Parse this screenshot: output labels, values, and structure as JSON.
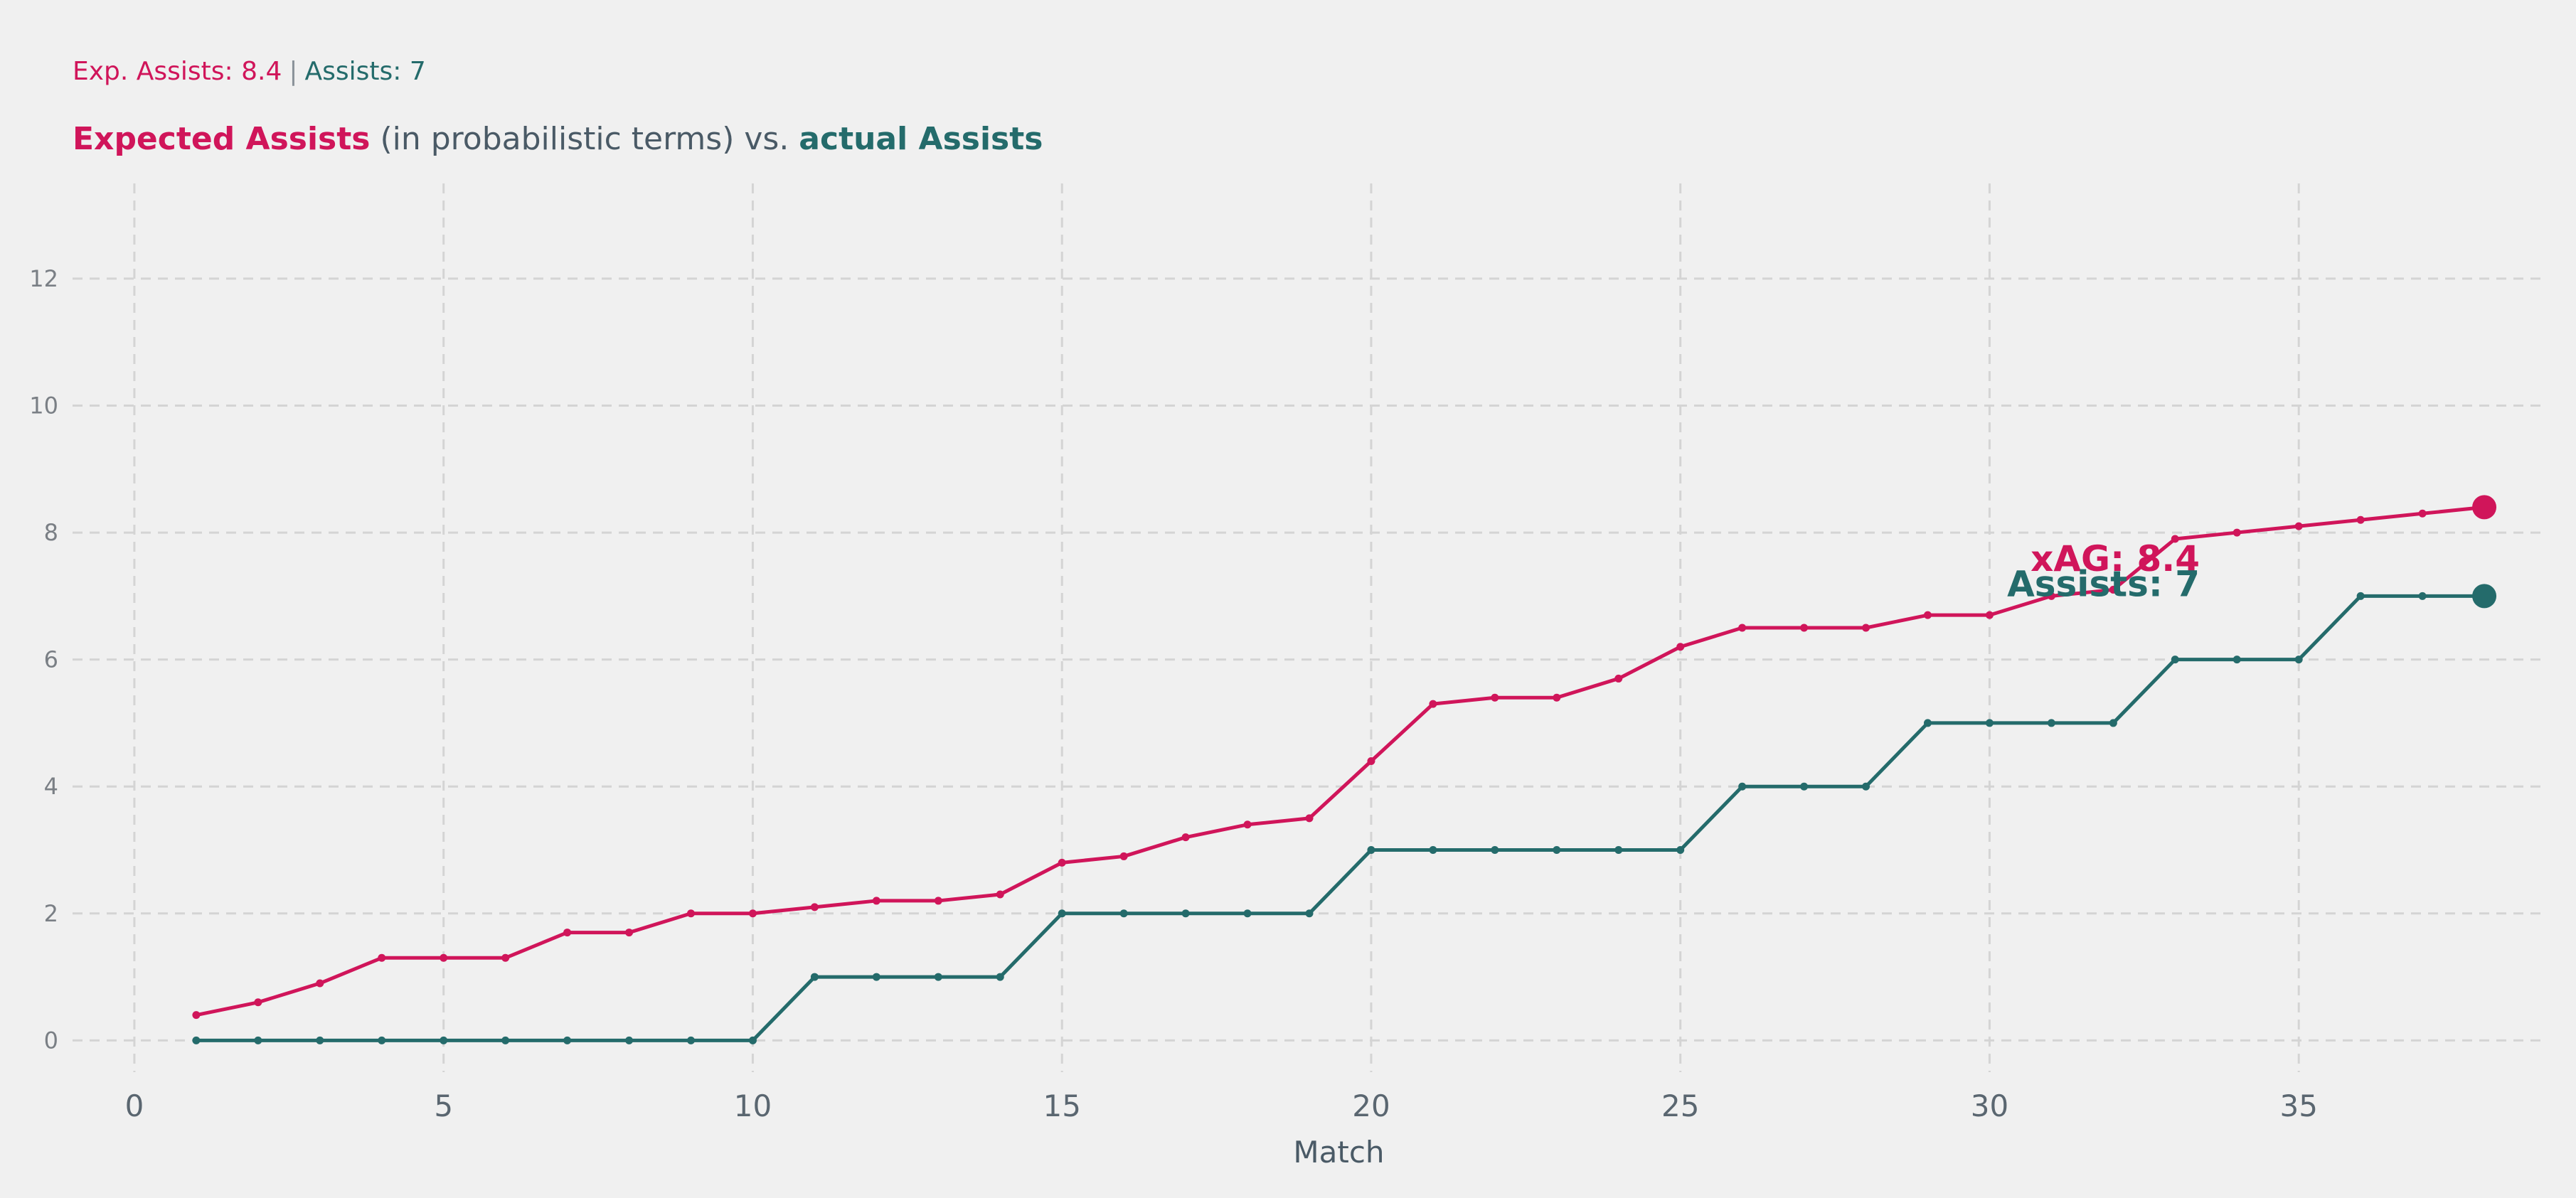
{
  "header": {
    "xa_stat": "Exp. Assists: 8.4",
    "separator": "|",
    "ac_stat": "Assists: 7",
    "title_xa": "Expected Assists",
    "title_mid": " (in probabilistic terms) vs. ",
    "title_ac": "actual Assists"
  },
  "chart_data": {
    "type": "line",
    "xlabel": "Match",
    "ylabel": "",
    "xlim": [
      -1,
      39
    ],
    "ylim": [
      -0.5,
      13.5
    ],
    "xticks": [
      0,
      5,
      10,
      15,
      20,
      25,
      30,
      35
    ],
    "yticks": [
      0,
      2,
      4,
      6,
      8,
      10,
      12
    ],
    "grid": true,
    "x": [
      1,
      2,
      3,
      4,
      5,
      6,
      7,
      8,
      9,
      10,
      11,
      12,
      13,
      14,
      15,
      16,
      17,
      18,
      19,
      20,
      21,
      22,
      23,
      24,
      25,
      26,
      27,
      28,
      29,
      30,
      31,
      32,
      33,
      34,
      35,
      36,
      37,
      38
    ],
    "series": [
      {
        "key": "xa",
        "color": "#d0155a",
        "values": [
          0.4,
          0.6,
          0.9,
          1.3,
          1.3,
          1.3,
          1.7,
          1.7,
          2.0,
          2.0,
          2.1,
          2.2,
          2.2,
          2.3,
          2.8,
          2.9,
          3.2,
          3.4,
          3.5,
          4.4,
          5.3,
          5.4,
          5.4,
          5.7,
          6.2,
          6.5,
          6.5,
          6.5,
          6.7,
          6.7,
          7.0,
          7.1,
          7.9,
          8.0,
          8.1,
          8.2,
          8.3,
          8.4
        ]
      },
      {
        "key": "ac",
        "color": "#246b6b",
        "values": [
          0,
          0,
          0,
          0,
          0,
          0,
          0,
          0,
          0,
          0,
          1,
          1,
          1,
          1,
          2,
          2,
          2,
          2,
          2,
          3,
          3,
          3,
          3,
          3,
          3,
          4,
          4,
          4,
          5,
          5,
          5,
          5,
          6,
          6,
          6,
          7,
          7,
          7
        ]
      }
    ],
    "annotations": [
      {
        "text": "xAG: 8.4",
        "color": "#d0155a",
        "x": 33.4,
        "y": 7.6
      },
      {
        "text": "Assists: 7",
        "color": "#246b6b",
        "x": 33.4,
        "y": 7.2
      }
    ]
  }
}
